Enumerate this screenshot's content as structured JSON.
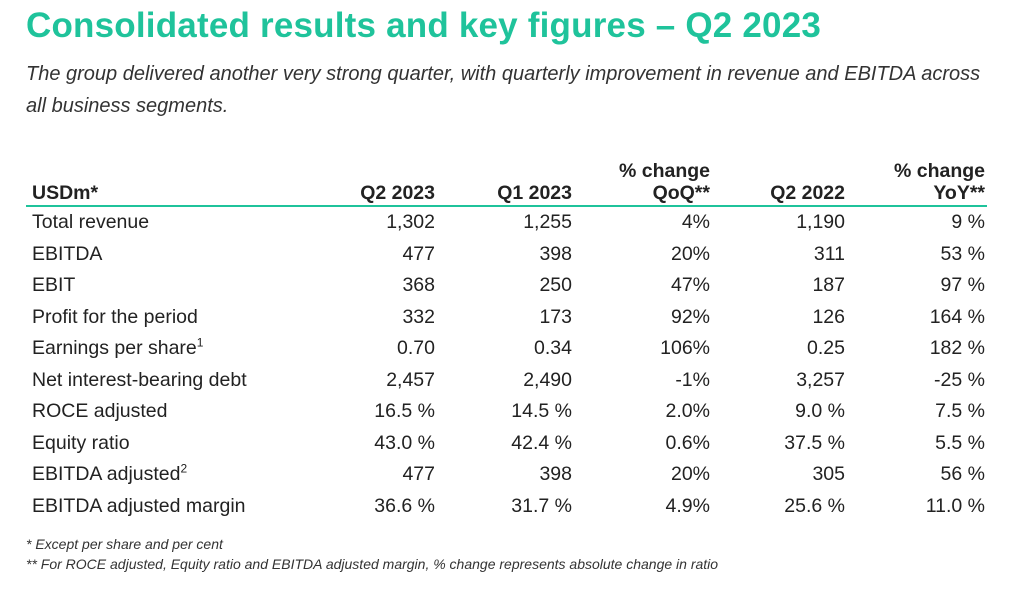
{
  "title": "Consolidated results and key figures – Q2 2023",
  "subtitle": "The group delivered another very strong quarter, with quarterly improvement in revenue and EBITDA across all business segments.",
  "table": {
    "header": {
      "label": "USDm*",
      "q2_2023": "Q2 2023",
      "q1_2023": "Q1 2023",
      "qoq_line1": "% change",
      "qoq_line2": "QoQ**",
      "q2_2022": "Q2 2022",
      "yoy_line1": "% change",
      "yoy_line2": "YoY**"
    },
    "rows": [
      {
        "label": "Total revenue",
        "sup": "",
        "q2_2023": "1,302",
        "q1_2023": "1,255",
        "qoq": "4%",
        "q2_2022": "1,190",
        "yoy": "9 %"
      },
      {
        "label": "EBITDA",
        "sup": "",
        "q2_2023": "477",
        "q1_2023": "398",
        "qoq": "20%",
        "q2_2022": "311",
        "yoy": "53 %"
      },
      {
        "label": "EBIT",
        "sup": "",
        "q2_2023": "368",
        "q1_2023": "250",
        "qoq": "47%",
        "q2_2022": "187",
        "yoy": "97 %"
      },
      {
        "label": "Profit for the period",
        "sup": "",
        "q2_2023": "332",
        "q1_2023": "173",
        "qoq": "92%",
        "q2_2022": "126",
        "yoy": "164 %"
      },
      {
        "label": "Earnings per share",
        "sup": "1",
        "q2_2023": "0.70",
        "q1_2023": "0.34",
        "qoq": "106%",
        "q2_2022": "0.25",
        "yoy": "182 %"
      },
      {
        "label": "Net interest-bearing debt",
        "sup": "",
        "q2_2023": "2,457",
        "q1_2023": "2,490",
        "qoq": "-1%",
        "q2_2022": "3,257",
        "yoy": "-25 %"
      },
      {
        "label": "ROCE adjusted",
        "sup": "",
        "q2_2023": "16.5 %",
        "q1_2023": "14.5 %",
        "qoq": "2.0%",
        "q2_2022": "9.0 %",
        "yoy": "7.5 %"
      },
      {
        "label": "Equity ratio",
        "sup": "",
        "q2_2023": "43.0 %",
        "q1_2023": "42.4 %",
        "qoq": "0.6%",
        "q2_2022": "37.5 %",
        "yoy": "5.5 %"
      },
      {
        "label": "EBITDA adjusted",
        "sup": "2",
        "q2_2023": "477",
        "q1_2023": "398",
        "qoq": "20%",
        "q2_2022": "305",
        "yoy": "56 %"
      },
      {
        "label": "EBITDA adjusted margin",
        "sup": "",
        "q2_2023": "36.6 %",
        "q1_2023": "31.7 %",
        "qoq": "4.9%",
        "q2_2022": "25.6 %",
        "yoy": "11.0 %"
      }
    ]
  },
  "footnotes": [
    "* Except per share and per cent",
    "** For ROCE adjusted, Equity ratio and EBITDA adjusted margin, % change represents absolute change in ratio"
  ],
  "colors": {
    "accent": "#1fc39b",
    "text": "#222222"
  }
}
